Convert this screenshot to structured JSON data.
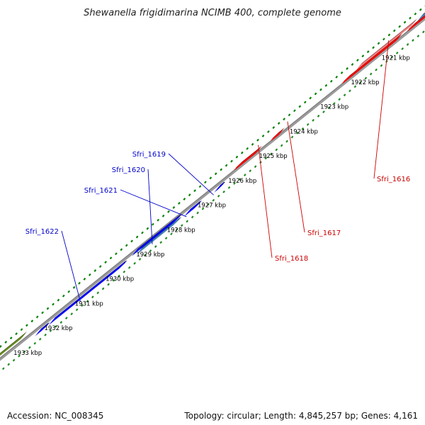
{
  "title": "Shewanella frigidimarina NCIMB 400, complete genome",
  "accession_text": "Accession: NC_008345",
  "topology_text": "Topology: circular; Length: 4,845,257 bp; Genes: 4,161",
  "colors": {
    "backbone": "#888888",
    "tick_forward": "#228B22",
    "tick_reverse": "#008000",
    "red": "#ff0000",
    "pink": "#f08080",
    "steelblue": "#4682b4",
    "blue": "#0000ff",
    "olive": "#6b8e23",
    "gray": "#c0c0c0",
    "orange": "#ff8c00",
    "label_blue": "#0000cc",
    "label_red": "#cc0000"
  },
  "scale_labels": [
    "1921 kbp",
    "1922 kbp",
    "1923 kbp",
    "1924 kbp",
    "1925 kbp",
    "1926 kbp",
    "1927 kbp",
    "1928 kbp",
    "1929 kbp",
    "1930 kbp",
    "1931 kbp",
    "1932 kbp",
    "1933 kbp"
  ],
  "genes": [
    {
      "label": "Sfri_1616",
      "strand": "reverse",
      "color": "red"
    },
    {
      "label": "Sfri_1617",
      "strand": "reverse",
      "color": "red"
    },
    {
      "label": "Sfri_1618",
      "strand": "reverse",
      "color": "red"
    },
    {
      "label": "Sfri_1619",
      "strand": "forward",
      "color": "blue"
    },
    {
      "label": "Sfri_1620",
      "strand": "forward",
      "color": "steelblue"
    },
    {
      "label": "Sfri_1621",
      "strand": "forward",
      "color": "blue"
    },
    {
      "label": "Sfri_1622",
      "strand": "forward",
      "color": "blue"
    }
  ]
}
